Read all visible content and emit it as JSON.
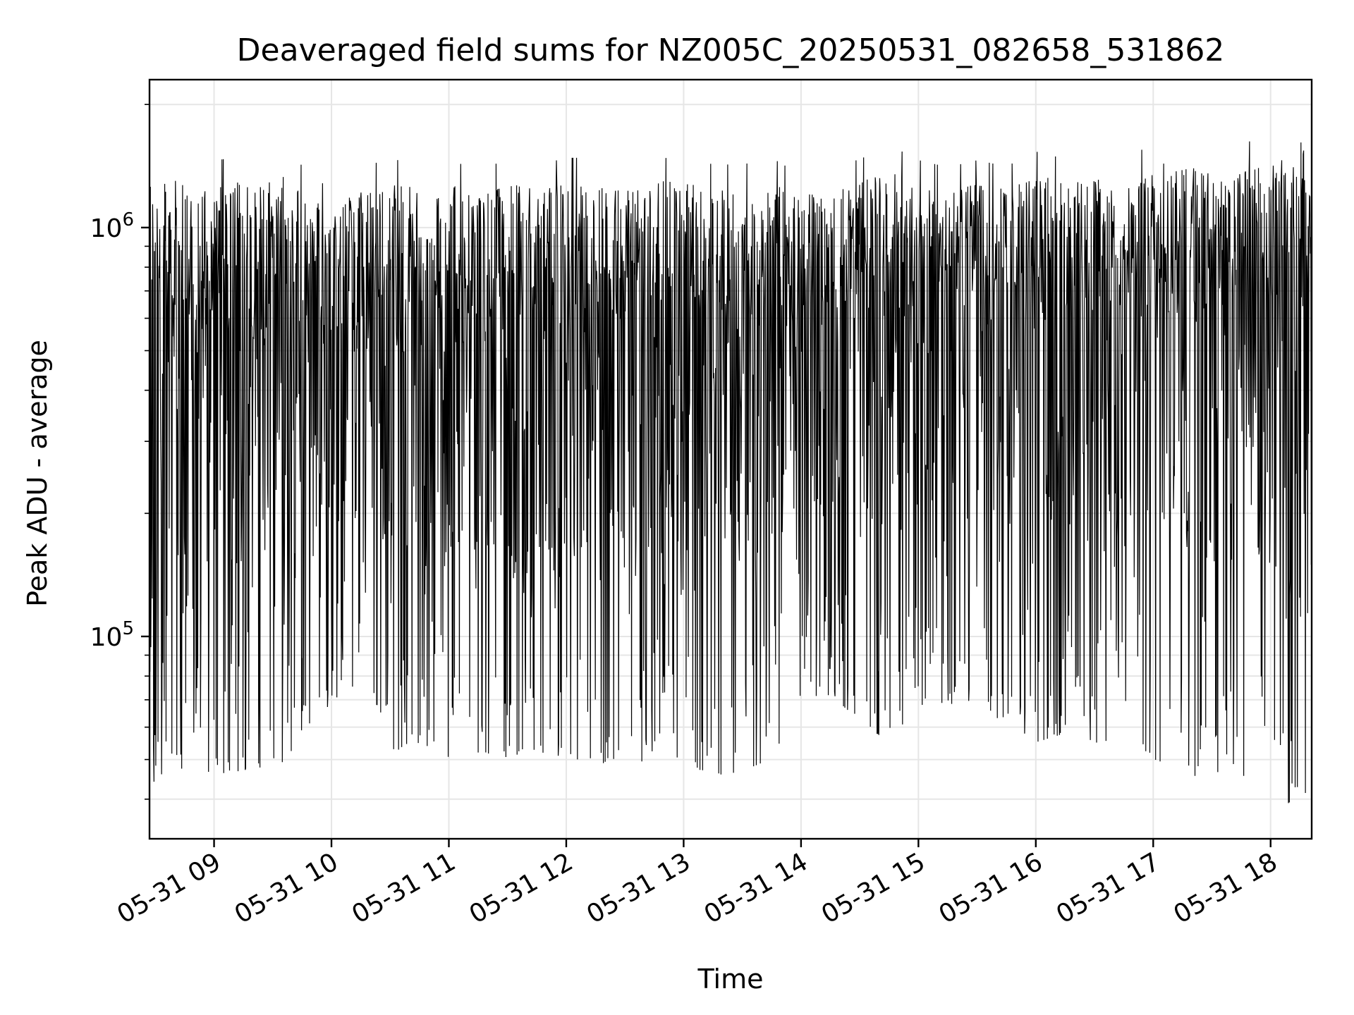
{
  "chart_data": {
    "type": "line",
    "title": "Deaveraged field sums for NZ005C_20250531_082658_531862",
    "xlabel": "Time",
    "ylabel": "Peak ADU - average",
    "yscale": "log",
    "ylim": [
      32000,
      2300000
    ],
    "xlim": [
      "2025-05-31 08:27",
      "2025-05-31 18:21"
    ],
    "x_ticks": [
      {
        "label": "05-31 09",
        "time": "2025-05-31 09:00"
      },
      {
        "label": "05-31 10",
        "time": "2025-05-31 10:00"
      },
      {
        "label": "05-31 11",
        "time": "2025-05-31 11:00"
      },
      {
        "label": "05-31 12",
        "time": "2025-05-31 12:00"
      },
      {
        "label": "05-31 13",
        "time": "2025-05-31 13:00"
      },
      {
        "label": "05-31 14",
        "time": "2025-05-31 14:00"
      },
      {
        "label": "05-31 15",
        "time": "2025-05-31 15:00"
      },
      {
        "label": "05-31 16",
        "time": "2025-05-31 16:00"
      },
      {
        "label": "05-31 17",
        "time": "2025-05-31 17:00"
      },
      {
        "label": "05-31 18",
        "time": "2025-05-31 18:00"
      }
    ],
    "y_ticks": [
      {
        "label_base": "10",
        "label_exp": "5",
        "value": 100000
      },
      {
        "label_base": "10",
        "label_exp": "6",
        "value": 1000000
      }
    ],
    "grid": true,
    "legend": "none",
    "series": [
      {
        "color": "#000000",
        "x": [
          "2025-05-31 08:27",
          "2025-05-31 08:45",
          "2025-05-31 09:00",
          "2025-05-31 09:15",
          "2025-05-31 09:30",
          "2025-05-31 09:45",
          "2025-05-31 10:00",
          "2025-05-31 10:15",
          "2025-05-31 10:30",
          "2025-05-31 10:45",
          "2025-05-31 11:00",
          "2025-05-31 11:15",
          "2025-05-31 11:30",
          "2025-05-31 11:45",
          "2025-05-31 12:00",
          "2025-05-31 12:15",
          "2025-05-31 12:30",
          "2025-05-31 12:45",
          "2025-05-31 13:00",
          "2025-05-31 13:15",
          "2025-05-31 13:30",
          "2025-05-31 13:45",
          "2025-05-31 14:00",
          "2025-05-31 14:15",
          "2025-05-31 14:30",
          "2025-05-31 14:45",
          "2025-05-31 15:00",
          "2025-05-31 15:15",
          "2025-05-31 15:30",
          "2025-05-31 15:45",
          "2025-05-31 16:00",
          "2025-05-31 16:15",
          "2025-05-31 16:30",
          "2025-05-31 16:45",
          "2025-05-31 17:00",
          "2025-05-31 17:15",
          "2025-05-31 17:30",
          "2025-05-31 17:45",
          "2025-05-31 18:00",
          "2025-05-31 18:21"
        ],
        "y_upper": [
          1350000,
          1300000,
          1280000,
          1300000,
          1380000,
          1250000,
          1100000,
          1250000,
          1300000,
          1250000,
          1300000,
          1200000,
          1300000,
          1250000,
          1300000,
          1300000,
          1250000,
          1300000,
          1300000,
          1250000,
          1250000,
          1300000,
          1200000,
          1250000,
          1300000,
          1400000,
          1300000,
          1250000,
          1300000,
          1250000,
          1350000,
          1300000,
          1350000,
          1300000,
          1400000,
          1550000,
          1350000,
          1400000,
          1450000,
          1700000
        ],
        "y_lower": [
          42000,
          48000,
          46000,
          47000,
          48000,
          52000,
          70000,
          75000,
          52000,
          55000,
          50000,
          52000,
          50000,
          52000,
          50000,
          50000,
          46000,
          52000,
          50000,
          45000,
          47000,
          50000,
          70000,
          72000,
          62000,
          55000,
          68000,
          68000,
          70000,
          60000,
          55000,
          58000,
          55000,
          55000,
          50000,
          46000,
          45000,
          46000,
          40000,
          38000
        ]
      }
    ]
  }
}
